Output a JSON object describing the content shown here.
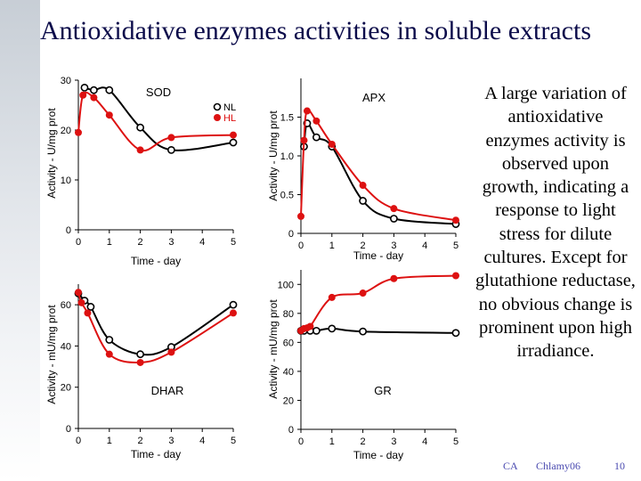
{
  "slide": {
    "title": "Antioxidative enzymes activities in soluble extracts",
    "note": "A large variation of antioxidative enzymes activity is observed upon growth, indicating a response to light stress for dilute cultures. Except for glutathione reductase, no obvious change is prominent upon high irradiance.",
    "footer_left": "CA",
    "footer_mid": "Chlamy06",
    "footer_page": "10"
  },
  "colors": {
    "NL": "#000000",
    "HL": "#dd1111",
    "title": "#0b0b4a",
    "footer": "#4b4bb0"
  },
  "chart_data": [
    {
      "type": "line",
      "title": "SOD",
      "xlabel": "Time - day",
      "ylabel": "Activity - U/mg prot",
      "xlim": [
        0,
        5
      ],
      "ylim": [
        0,
        30
      ],
      "xticks": [
        0,
        1,
        2,
        3,
        4,
        5
      ],
      "yticks": [
        0,
        10,
        20,
        30
      ],
      "legend": [
        "NL",
        "HL"
      ],
      "legend_position": "top-right",
      "series": [
        {
          "name": "NL",
          "x": [
            0.2,
            0.5,
            1.0,
            2.0,
            3.0,
            5.0
          ],
          "y": [
            28.5,
            28.0,
            28.0,
            20.5,
            16.0,
            17.5
          ]
        },
        {
          "name": "HL",
          "x": [
            0.0,
            0.15,
            0.5,
            1.0,
            2.0,
            3.0,
            5.0
          ],
          "y": [
            19.5,
            27.0,
            26.5,
            23.0,
            16.0,
            18.5,
            19.0
          ]
        }
      ]
    },
    {
      "type": "line",
      "title": "APX",
      "xlabel": "Time - day",
      "ylabel": "Activity - U/mg prot",
      "xlim": [
        0,
        5
      ],
      "ylim": [
        0,
        2
      ],
      "xticks": [
        0,
        1,
        2,
        3,
        4,
        5
      ],
      "yticks": [
        0,
        0.5,
        1.0,
        1.5
      ],
      "yticklabels": [
        "0",
        "0.5",
        "1.0",
        "1.5"
      ],
      "series": [
        {
          "name": "NL",
          "x": [
            0.1,
            0.2,
            0.5,
            1.0,
            2.0,
            3.0,
            5.0
          ],
          "y": [
            1.12,
            1.42,
            1.24,
            1.12,
            0.42,
            0.19,
            0.12
          ]
        },
        {
          "name": "HL",
          "x": [
            0.0,
            0.1,
            0.2,
            0.5,
            1.0,
            2.0,
            3.0,
            5.0
          ],
          "y": [
            0.22,
            1.2,
            1.58,
            1.45,
            1.15,
            0.62,
            0.32,
            0.17
          ]
        }
      ]
    },
    {
      "type": "line",
      "title": "DHAR",
      "xlabel": "Time - day",
      "ylabel": "Activity - mU/mg prot",
      "xlim": [
        0,
        5
      ],
      "ylim": [
        0,
        70
      ],
      "xticks": [
        0,
        1,
        2,
        3,
        4,
        5
      ],
      "yticks": [
        0,
        20,
        40,
        60
      ],
      "series": [
        {
          "name": "NL",
          "x": [
            0.0,
            0.2,
            0.4,
            1.0,
            2.0,
            3.0,
            5.0
          ],
          "y": [
            65.5,
            62.0,
            59.0,
            43.0,
            36.0,
            39.5,
            60.0
          ]
        },
        {
          "name": "HL",
          "x": [
            0.0,
            0.1,
            0.3,
            1.0,
            2.0,
            3.0,
            5.0
          ],
          "y": [
            66.0,
            61.0,
            56.0,
            36.0,
            32.0,
            37.0,
            56.0
          ]
        }
      ]
    },
    {
      "type": "line",
      "title": "GR",
      "xlabel": "Time - day",
      "ylabel": "Activity - mU/mg prot",
      "xlim": [
        0,
        5
      ],
      "ylim": [
        0,
        110
      ],
      "xticks": [
        0,
        1,
        2,
        3,
        4,
        5
      ],
      "yticks": [
        0,
        20,
        40,
        60,
        80,
        100
      ],
      "series": [
        {
          "name": "NL",
          "x": [
            0.0,
            0.1,
            0.3,
            0.5,
            1.0,
            2.0,
            5.0
          ],
          "y": [
            68.0,
            68.0,
            68.0,
            68.0,
            69.5,
            67.5,
            66.5
          ]
        },
        {
          "name": "HL",
          "x": [
            0.0,
            0.1,
            0.2,
            0.3,
            1.0,
            2.0,
            3.0,
            5.0
          ],
          "y": [
            68.0,
            69.5,
            70.0,
            71.0,
            91.0,
            94.0,
            104.0,
            106.0
          ]
        }
      ]
    }
  ]
}
